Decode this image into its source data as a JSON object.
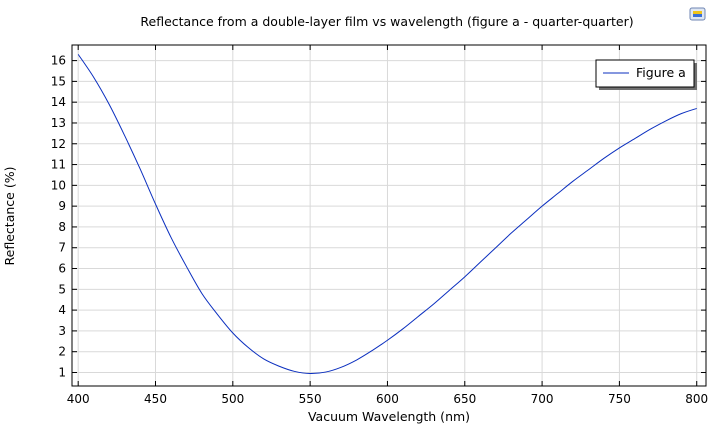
{
  "chart_data": {
    "type": "line",
    "title": "Reflectance from a double-layer film vs wavelength (figure a - quarter-quarter)",
    "xlabel": "Vacuum Wavelength (nm)",
    "ylabel": "Reflectance (%)",
    "xlim": [
      396,
      806
    ],
    "ylim": [
      0.35,
      16.75
    ],
    "xticks": [
      400,
      450,
      500,
      550,
      600,
      650,
      700,
      750,
      800
    ],
    "yticks": [
      1,
      2,
      3,
      4,
      5,
      6,
      7,
      8,
      9,
      10,
      11,
      12,
      13,
      14,
      15,
      16
    ],
    "grid": true,
    "legend_position": "top-right",
    "series": [
      {
        "name": "Figure a",
        "color": "#0b2fbf",
        "x": [
          400,
          410,
          420,
          430,
          440,
          450,
          460,
          470,
          480,
          490,
          500,
          510,
          520,
          530,
          540,
          550,
          560,
          570,
          580,
          590,
          600,
          610,
          620,
          630,
          640,
          650,
          660,
          670,
          680,
          690,
          700,
          710,
          720,
          730,
          740,
          750,
          760,
          770,
          780,
          790,
          800
        ],
        "y": [
          16.3,
          15.2,
          13.9,
          12.4,
          10.8,
          9.1,
          7.5,
          6.1,
          4.8,
          3.8,
          2.9,
          2.2,
          1.65,
          1.3,
          1.05,
          0.95,
          1.02,
          1.25,
          1.6,
          2.05,
          2.55,
          3.1,
          3.7,
          4.3,
          4.95,
          5.6,
          6.3,
          7.0,
          7.7,
          8.35,
          9.0,
          9.6,
          10.2,
          10.75,
          11.3,
          11.8,
          12.25,
          12.7,
          13.1,
          13.45,
          13.7
        ]
      }
    ]
  }
}
